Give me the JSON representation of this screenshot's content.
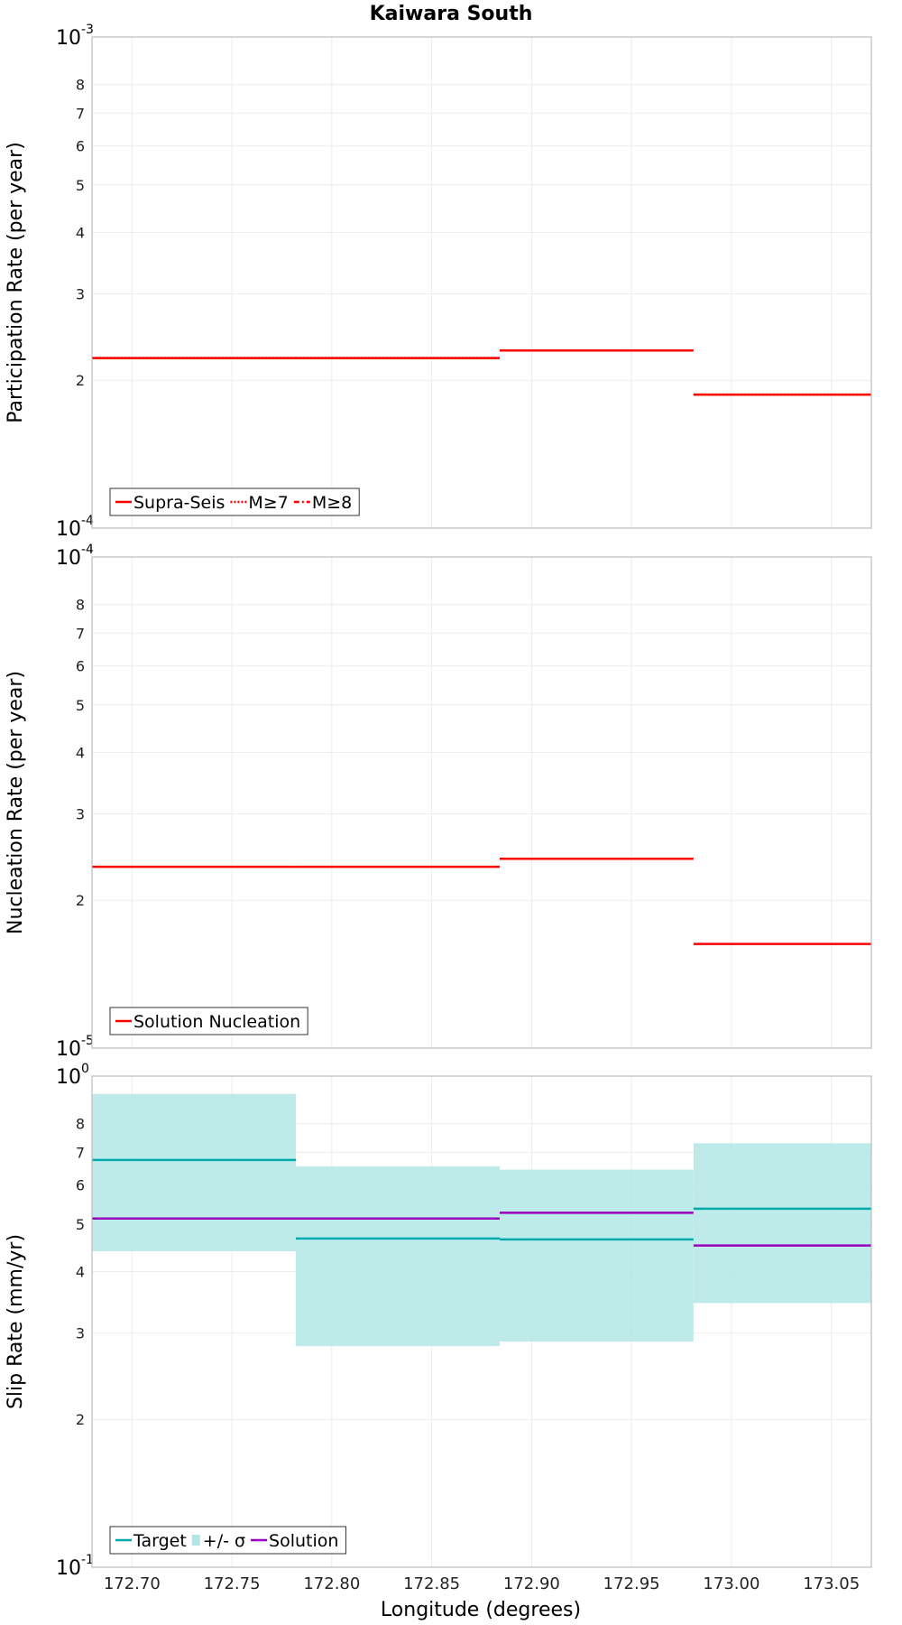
{
  "chart_data": {
    "title": "Kaiwara South",
    "xlabel": "Longitude (degrees)",
    "xlim": [
      172.68,
      173.07
    ],
    "x_ticks": [
      "172.70",
      "172.75",
      "172.80",
      "172.85",
      "172.90",
      "172.95",
      "173.00",
      "173.05"
    ],
    "x_tick_values": [
      172.7,
      172.75,
      172.8,
      172.85,
      172.9,
      172.95,
      173.0,
      173.05
    ],
    "subsections": [
      [
        172.68,
        172.782
      ],
      [
        172.782,
        172.884
      ],
      [
        172.884,
        172.981
      ],
      [
        172.981,
        173.07
      ]
    ],
    "panels": [
      {
        "type": "step",
        "yscale": "log",
        "ylabel": "Participation Rate (per year)",
        "ylim": [
          0.0001,
          0.001
        ],
        "y_bottom_label": {
          "base": "10",
          "exp": "-4"
        },
        "y_top_label": {
          "base": "10",
          "exp": "-3"
        },
        "minor_ticks": [
          2,
          3,
          4,
          5,
          6,
          7,
          8
        ],
        "minor_tick_labels": [
          "2",
          "3",
          "4",
          "5",
          "6",
          "7",
          "8"
        ],
        "legend": [
          {
            "label": "Supra-Seis",
            "color": "#ff0000",
            "style": "solid"
          },
          {
            "label": "M≥7",
            "color": "#ff0000",
            "style": "dotted"
          },
          {
            "label": "M≥8",
            "color": "#ff0000",
            "style": "dashdot"
          }
        ],
        "series": [
          {
            "name": "Supra-Seis",
            "color": "#ff0000",
            "style": "solid",
            "values": [
              0.000222,
              0.000222,
              0.00023,
              0.000187
            ]
          },
          {
            "name": "M≥7",
            "color": "#ff0000",
            "style": "dotted",
            "values": [
              0.000222,
              0.000222,
              0.00023,
              0.000187
            ]
          }
        ]
      },
      {
        "type": "step",
        "yscale": "log",
        "ylabel": "Nucleation Rate (per year)",
        "ylim": [
          1e-05,
          0.0001
        ],
        "y_bottom_label": {
          "base": "10",
          "exp": "-5"
        },
        "y_top_label": {
          "base": "10",
          "exp": "-4"
        },
        "minor_ticks": [
          2,
          3,
          4,
          5,
          6,
          7,
          8
        ],
        "minor_tick_labels": [
          "2",
          "3",
          "4",
          "5",
          "6",
          "7",
          "8"
        ],
        "legend": [
          {
            "label": "Solution Nucleation",
            "color": "#ff0000",
            "style": "solid"
          }
        ],
        "series": [
          {
            "name": "Solution Nucleation",
            "color": "#ff0000",
            "style": "solid",
            "values": [
              2.34e-05,
              2.34e-05,
              2.43e-05,
              1.63e-05
            ]
          }
        ]
      },
      {
        "type": "step",
        "yscale": "log",
        "ylabel": "Slip Rate (mm/yr)",
        "ylim": [
          0.1,
          1.0
        ],
        "y_bottom_label": {
          "base": "10",
          "exp": "-1"
        },
        "y_top_label": {
          "base": "10",
          "exp": "0"
        },
        "minor_ticks": [
          0.2,
          0.3,
          0.4,
          0.5,
          0.6,
          0.7,
          0.8
        ],
        "minor_tick_labels": [
          "2",
          "3",
          "4",
          "5",
          "6",
          "7",
          "8"
        ],
        "legend": [
          {
            "label": "Target",
            "color": "#00aaaa",
            "style": "solid"
          },
          {
            "label": "+/- σ",
            "color": "#b3e6e6",
            "style": "band"
          },
          {
            "label": "Solution",
            "color": "#9900bb",
            "style": "solid"
          }
        ],
        "band": {
          "name": "+/- σ",
          "color": "#b3e6e6",
          "lower": [
            0.44,
            0.282,
            0.288,
            0.345
          ],
          "upper": [
            0.92,
            0.655,
            0.645,
            0.73
          ]
        },
        "series": [
          {
            "name": "Target",
            "color": "#00aaaa",
            "style": "solid",
            "values": [
              0.675,
              0.467,
              0.465,
              0.537
            ]
          },
          {
            "name": "Solution",
            "color": "#9900bb",
            "style": "solid",
            "values": [
              0.513,
              0.513,
              0.527,
              0.452
            ]
          }
        ]
      }
    ]
  }
}
